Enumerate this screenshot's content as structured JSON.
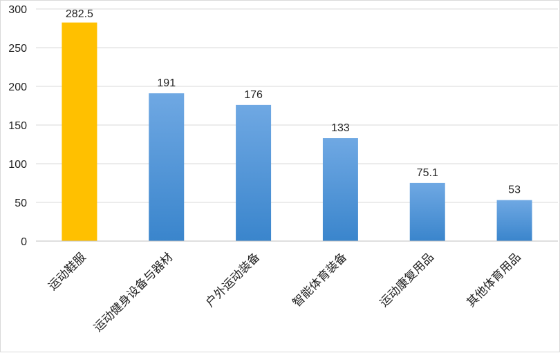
{
  "chart_data": {
    "type": "bar",
    "title": "",
    "xlabel": "",
    "ylabel": "",
    "categories": [
      "运动鞋服",
      "运动健身设备与器材",
      "户外运动装备",
      "智能体育装备",
      "运动康复用品",
      "其他体育用品"
    ],
    "values": [
      282.5,
      191,
      176,
      133,
      75.1,
      53
    ],
    "data_labels": [
      "282.5",
      "191",
      "176",
      "133",
      "75.1",
      "53"
    ],
    "ylim": [
      0,
      300
    ],
    "yticks": [
      0,
      50,
      100,
      150,
      200,
      250,
      300
    ],
    "ytick_labels": [
      "0",
      "50",
      "100",
      "150",
      "200",
      "250",
      "300"
    ],
    "grid": true,
    "legend": "none",
    "colors": {
      "highlight": "#FFC000",
      "bar_top": "#6FA8E3",
      "bar_bottom": "#3A85CC",
      "grid": "#d9d9d9",
      "axis": "#bfbfbf"
    },
    "highlight_index": 0
  }
}
